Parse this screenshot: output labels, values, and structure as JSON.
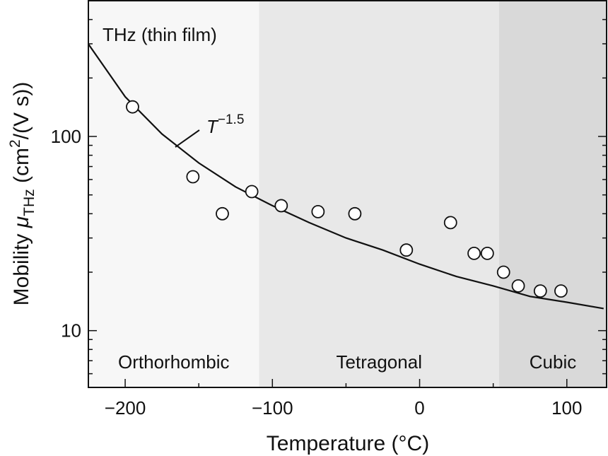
{
  "chart_data": {
    "type": "scatter",
    "annotation": "THz (thin film)",
    "x_label": "Temperature (°C)",
    "y_label": {
      "text": "Mobility",
      "symbol": "μ",
      "subscript": "THz",
      "units_open": "(cm",
      "superscript": "2",
      "units_close": "/(V s))"
    },
    "xlim": [
      -225,
      127
    ],
    "ylim": [
      5.1,
      500
    ],
    "log_y": true,
    "xticks": [
      {
        "value": -200,
        "label": "−200"
      },
      {
        "value": -100,
        "label": "−100"
      },
      0,
      100
    ],
    "xminorticks": [
      -150,
      -50,
      50
    ],
    "yticks": [
      10,
      100
    ],
    "yminorticks": [
      6,
      7,
      8,
      9,
      20,
      30,
      40,
      50,
      60,
      70,
      80,
      90,
      200,
      300,
      400
    ],
    "phases": [
      {
        "label": "Orthorhombic",
        "range": [
          -225,
          -109
        ],
        "color": "#f7f7f7"
      },
      {
        "label": "Tetragonal",
        "range": [
          -109,
          54
        ],
        "color": "#e8e8e8"
      },
      {
        "label": "Cubic",
        "range": [
          54,
          127
        ],
        "color": "#d9d9d9"
      }
    ],
    "series": [
      {
        "name": "THz",
        "color": "#ffffff",
        "x": [
          -195,
          -154,
          -134,
          -114,
          -94,
          -69,
          -44,
          -9,
          21,
          37,
          46,
          57,
          67,
          82,
          96
        ],
        "values": [
          142,
          62,
          40,
          52,
          44,
          41,
          40,
          26,
          36,
          25,
          25,
          20,
          17,
          16,
          16
        ]
      }
    ],
    "fit": {
      "base": "T",
      "exponent": {
        "value": -1.5,
        "label": "−1.5"
      },
      "color": "#111111",
      "x": [
        -225,
        -200,
        -175,
        -150,
        -125,
        -100,
        -75,
        -50,
        -25,
        0,
        25,
        50,
        75,
        100,
        125
      ],
      "values": [
        299,
        160,
        103,
        73,
        55,
        44,
        36,
        30,
        26,
        22,
        19,
        17,
        15,
        14,
        13
      ]
    }
  }
}
